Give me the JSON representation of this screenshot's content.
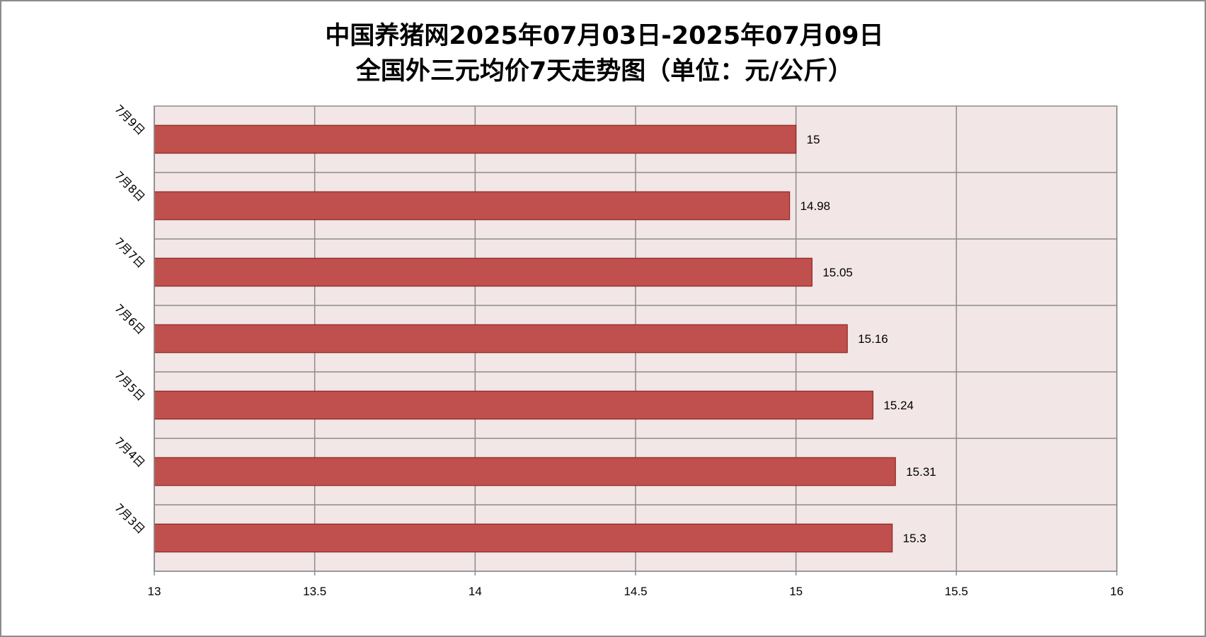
{
  "chart_data": {
    "type": "bar",
    "orientation": "horizontal",
    "title": [
      "中国养猪网2025年07月03日-2025年07月09日",
      "全国外三元均价7天走势图（单位：元/公斤）"
    ],
    "categories": [
      "7月9日",
      "7月8日",
      "7月7日",
      "7月6日",
      "7月5日",
      "7月4日",
      "7月3日"
    ],
    "values": [
      15,
      14.98,
      15.05,
      15.16,
      15.24,
      15.31,
      15.3
    ],
    "value_labels": [
      "15",
      "14.98",
      "15.05",
      "15.16",
      "15.24",
      "15.31",
      "15.3"
    ],
    "xlim": [
      13,
      16
    ],
    "x_ticks": [
      13,
      13.5,
      14,
      14.5,
      15,
      15.5,
      16
    ],
    "x_tick_labels": [
      "13",
      "13.5",
      "14",
      "14.5",
      "15",
      "15.5",
      "16"
    ],
    "xlabel": "",
    "ylabel": "",
    "grid": true,
    "legend": "none",
    "colors": {
      "bar_fill": "#c0504d",
      "bar_stroke": "#8b2523",
      "plot_background": "#f2e6e6",
      "grid": "#8c8c8c",
      "axis": "#8c8c8c",
      "text": "#000000"
    }
  }
}
